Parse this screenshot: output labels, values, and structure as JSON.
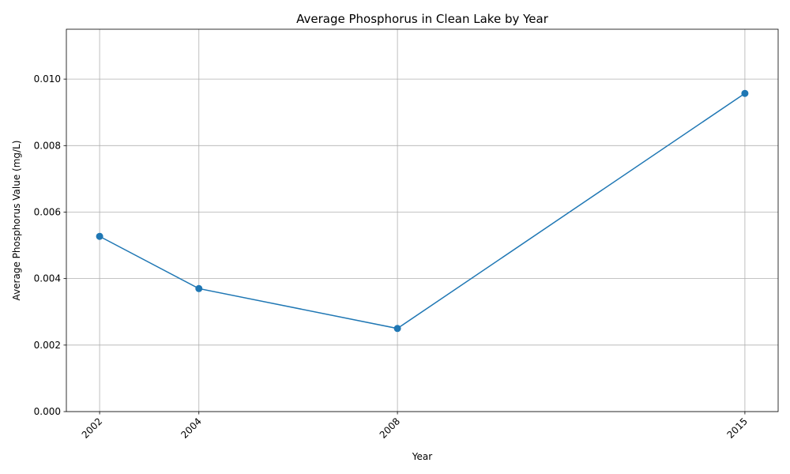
{
  "chart_data": {
    "type": "line",
    "title": "Average Phosphorus in Clean Lake by Year",
    "xlabel": "Year",
    "ylabel": "Average Phosphorus Value (mg/L)",
    "x": [
      2002,
      2004,
      2008,
      2015
    ],
    "x_tick_labels": [
      "2002",
      "2004",
      "2008",
      "2015"
    ],
    "series": [
      {
        "values": [
          0.00527,
          0.0037,
          0.0025,
          0.00957
        ],
        "color": "#1f77b4"
      }
    ],
    "xlim": [
      2001.33,
      2015.67
    ],
    "ylim": [
      0,
      0.0115
    ],
    "y_ticks": [
      0.0,
      0.002,
      0.004,
      0.006,
      0.008,
      0.01
    ],
    "y_tick_labels": [
      "0.000",
      "0.002",
      "0.004",
      "0.006",
      "0.008",
      "0.010"
    ],
    "grid": true,
    "markers": true
  }
}
